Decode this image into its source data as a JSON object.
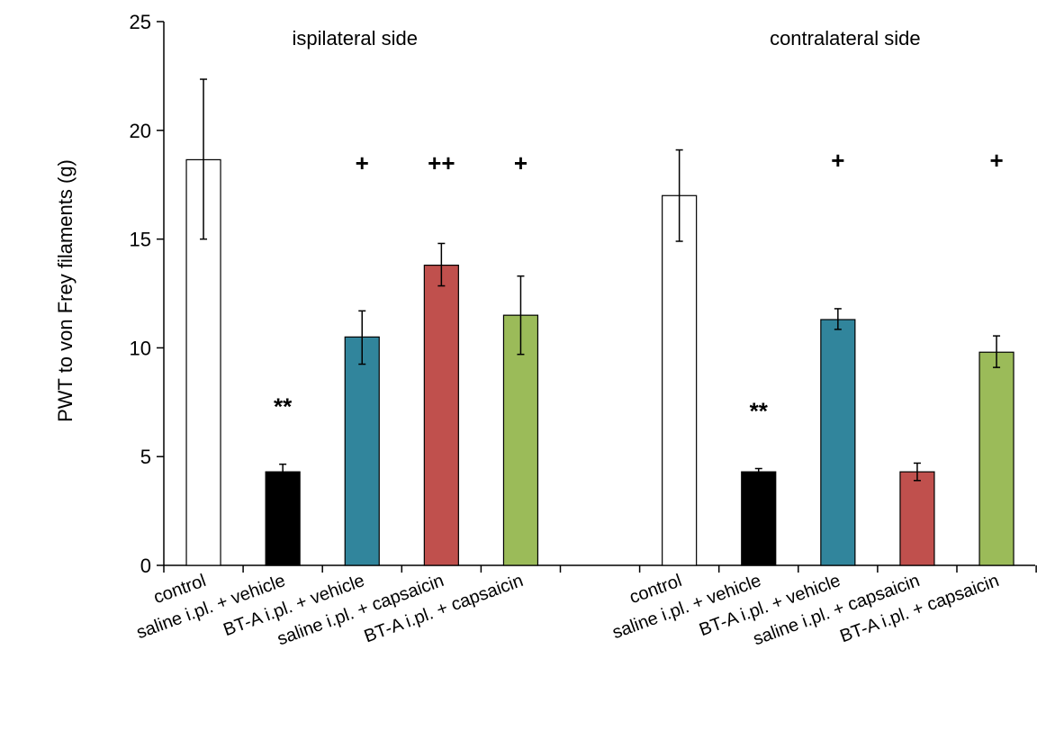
{
  "chart_data": {
    "type": "bar",
    "ylabel": "PWT to von Frey filaments (g)",
    "xlabel": "",
    "ylim": [
      0,
      25
    ],
    "yticks": [
      "0",
      "5",
      "10",
      "15",
      "20",
      "25"
    ],
    "grid": false,
    "groups": [
      {
        "title": "ispilateral side",
        "bars": [
          {
            "category": "control",
            "value": 18.65,
            "err_low": 15.0,
            "err_high": 22.35,
            "color": "#ffffff",
            "marker": ""
          },
          {
            "category": "saline i.pl. + vehicle",
            "value": 4.3,
            "err_low": 3.95,
            "err_high": 4.65,
            "color": "#000000",
            "marker": "**"
          },
          {
            "category": "BT-A i.pl. + vehicle",
            "value": 10.5,
            "err_low": 9.25,
            "err_high": 11.7,
            "color": "#31859c",
            "marker": "+"
          },
          {
            "category": "saline i.pl. + capsaicin",
            "value": 13.8,
            "err_low": 12.85,
            "err_high": 14.8,
            "color": "#c0504d",
            "marker": "++"
          },
          {
            "category": "BT-A i.pl. + capsaicin",
            "value": 11.5,
            "err_low": 9.7,
            "err_high": 13.3,
            "color": "#9bbb59",
            "marker": "+"
          }
        ]
      },
      {
        "title": "contralateral side",
        "bars": [
          {
            "category": "control",
            "value": 17.0,
            "err_low": 14.9,
            "err_high": 19.1,
            "color": "#ffffff",
            "marker": ""
          },
          {
            "category": "saline i.pl. + vehicle",
            "value": 4.3,
            "err_low": 4.15,
            "err_high": 4.45,
            "color": "#000000",
            "marker": "**"
          },
          {
            "category": "BT-A i.pl. + vehicle",
            "value": 11.3,
            "err_low": 10.85,
            "err_high": 11.8,
            "color": "#31859c",
            "marker": "+"
          },
          {
            "category": "saline i.pl. + capsaicin",
            "value": 4.3,
            "err_low": 3.9,
            "err_high": 4.7,
            "color": "#c0504d",
            "marker": ""
          },
          {
            "category": "BT-A i.pl. + capsaicin",
            "value": 9.8,
            "err_low": 9.1,
            "err_high": 10.55,
            "color": "#9bbb59",
            "marker": "+"
          }
        ]
      }
    ]
  }
}
